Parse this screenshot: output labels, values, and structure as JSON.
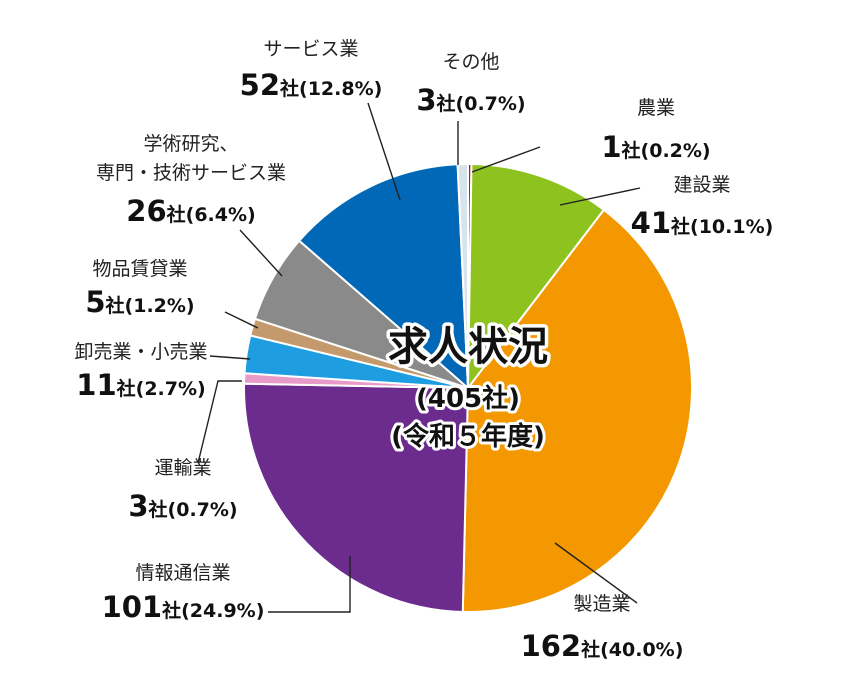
{
  "chart_data": {
    "type": "pie",
    "title": "求人状況",
    "subtitle_lines": [
      "(405社)",
      "(令和５年度)"
    ],
    "unit": "社",
    "start_angle_deg": 0,
    "direction": "clockwise",
    "slices": [
      {
        "name": "農業",
        "value": 1,
        "percent": "0.2%",
        "color": "#c8102e"
      },
      {
        "name": "建設業",
        "value": 41,
        "percent": "10.1%",
        "color": "#8dc21f"
      },
      {
        "name": "製造業",
        "value": 162,
        "percent": "40.0%",
        "color": "#f39800"
      },
      {
        "name": "情報通信業",
        "value": 101,
        "percent": "24.9%",
        "color": "#6b2c8e"
      },
      {
        "name": "運輸業",
        "value": 3,
        "percent": "0.7%",
        "color": "#e89ac8"
      },
      {
        "name": "卸売業・小売業",
        "value": 11,
        "percent": "2.7%",
        "color": "#1e9ee0"
      },
      {
        "name": "物品賃貸業",
        "value": 5,
        "percent": "1.2%",
        "color": "#c49a6c"
      },
      {
        "name": "学術研究、専門・技術サービス業",
        "value": 26,
        "percent": "6.4%",
        "color": "#8a8a8a",
        "name_lines": [
          "学術研究、",
          "専門・技術サービス業"
        ]
      },
      {
        "name": "サービス業",
        "value": 52,
        "percent": "12.8%",
        "color": "#0068b7"
      },
      {
        "name": "その他",
        "value": 3,
        "percent": "0.7%",
        "color": "#d8e4ec"
      }
    ]
  }
}
